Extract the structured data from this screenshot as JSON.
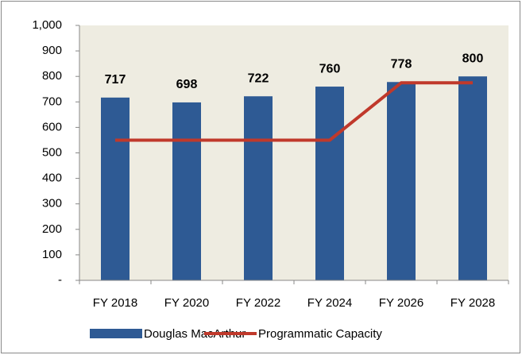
{
  "chart_data": {
    "type": "bar",
    "categories": [
      "FY 2018",
      "FY 2020",
      "FY 2022",
      "FY 2024",
      "FY 2026",
      "FY 2028"
    ],
    "series": [
      {
        "name": "Douglas MacArthur",
        "color": "#2e5a94",
        "type": "bar",
        "values": [
          717,
          698,
          722,
          760,
          778,
          800
        ]
      },
      {
        "name": "Programmatic Capacity",
        "color": "#c0392b",
        "type": "line",
        "values": [
          550,
          550,
          550,
          550,
          775,
          775
        ]
      }
    ],
    "ylim": [
      0,
      1000
    ],
    "yticks": [
      {
        "value": 0,
        "label": "-"
      },
      100,
      200,
      300,
      400,
      500,
      600,
      700,
      800,
      900,
      {
        "value": 1000,
        "label": "1,000"
      }
    ],
    "legend": "bottom",
    "plot_background": "#eeece1"
  }
}
